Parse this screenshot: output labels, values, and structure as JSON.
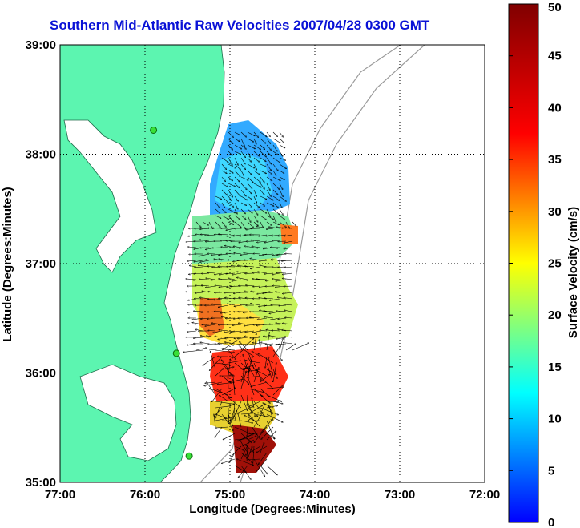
{
  "title": "Southern Mid-Atlantic Raw Velocities 2007/04/28 0300 GMT",
  "map": {
    "xlabel": "Longitude (Degrees:Minutes)",
    "ylabel": "Latitude (Degrees:Minutes)",
    "lon_ticks": [
      "77:00",
      "76:00",
      "75:00",
      "74:00",
      "73:00",
      "72:00"
    ],
    "lat_ticks": [
      "39:00",
      "38:00",
      "37:00",
      "36:00",
      "35:00"
    ],
    "lon_range": [
      -77,
      -72
    ],
    "lat_range": [
      35,
      39
    ],
    "grid": true,
    "land_color": "#5cf5b0",
    "stations": [
      {
        "lon": -75.9,
        "lat": 38.22
      },
      {
        "lon": -75.63,
        "lat": 36.18
      },
      {
        "lon": -75.48,
        "lat": 35.24
      }
    ]
  },
  "colorbar": {
    "label": "Surface Velocity (cm/s)",
    "ticks": [
      "0",
      "5",
      "10",
      "15",
      "20",
      "25",
      "30",
      "35",
      "40",
      "45",
      "50"
    ],
    "min": 0,
    "max": 50,
    "colors": [
      "#0000ff",
      "#00ffff",
      "#ffff00",
      "#ff0000",
      "#800000"
    ]
  }
}
